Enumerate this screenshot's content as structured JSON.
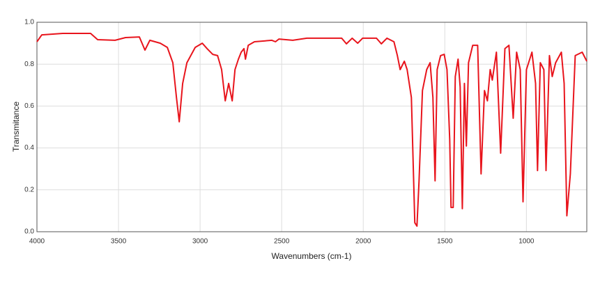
{
  "chart_data": {
    "type": "line",
    "xlabel": "Wavenumbers (cm-1)",
    "ylabel": "Transmitance",
    "xlim": [
      4000,
      630
    ],
    "ylim": [
      0,
      1
    ],
    "xticks": [
      4000,
      3500,
      3000,
      2500,
      2000,
      1500,
      1000
    ],
    "yticks": [
      {
        "value": 0,
        "label": "0.0"
      },
      0.2,
      0.4,
      0.6,
      0.8,
      {
        "value": 1,
        "label": "1.0"
      }
    ],
    "grid": true,
    "series": [
      {
        "color": "#e8141c",
        "x": [
          4000,
          3970,
          3842,
          3671,
          3628,
          3521,
          3457,
          3372,
          3338,
          3308,
          3244,
          3201,
          3167,
          3145,
          3128,
          3107,
          3081,
          3030,
          2987,
          2957,
          2923,
          2893,
          2868,
          2846,
          2825,
          2803,
          2786,
          2765,
          2748,
          2731,
          2722,
          2705,
          2667,
          2560,
          2538,
          2517,
          2432,
          2346,
          2132,
          2103,
          2068,
          2034,
          2004,
          1919,
          1889,
          1855,
          1812,
          1791,
          1774,
          1748,
          1731,
          1705,
          1684,
          1671,
          1658,
          1637,
          1611,
          1590,
          1573,
          1560,
          1547,
          1526,
          1504,
          1487,
          1470,
          1462,
          1449,
          1436,
          1419,
          1406,
          1393,
          1380,
          1368,
          1355,
          1329,
          1299,
          1278,
          1257,
          1239,
          1222,
          1209,
          1184,
          1158,
          1132,
          1107,
          1081,
          1060,
          1038,
          1021,
          1000,
          966,
          944,
          932,
          915,
          893,
          880,
          859,
          842,
          821,
          786,
          769,
          752,
          731,
          701,
          658,
          630
        ],
        "values": [
          0.907,
          0.94,
          0.947,
          0.947,
          0.917,
          0.914,
          0.927,
          0.93,
          0.867,
          0.914,
          0.9,
          0.88,
          0.807,
          0.641,
          0.525,
          0.708,
          0.807,
          0.88,
          0.9,
          0.874,
          0.847,
          0.841,
          0.774,
          0.625,
          0.708,
          0.625,
          0.774,
          0.824,
          0.857,
          0.874,
          0.824,
          0.89,
          0.907,
          0.914,
          0.907,
          0.92,
          0.914,
          0.924,
          0.924,
          0.897,
          0.924,
          0.9,
          0.924,
          0.924,
          0.897,
          0.924,
          0.907,
          0.841,
          0.774,
          0.814,
          0.774,
          0.641,
          0.043,
          0.027,
          0.243,
          0.674,
          0.774,
          0.807,
          0.641,
          0.243,
          0.774,
          0.841,
          0.847,
          0.774,
          0.442,
          0.116,
          0.116,
          0.741,
          0.824,
          0.691,
          0.11,
          0.708,
          0.409,
          0.807,
          0.89,
          0.89,
          0.276,
          0.674,
          0.625,
          0.774,
          0.724,
          0.857,
          0.375,
          0.874,
          0.89,
          0.542,
          0.857,
          0.774,
          0.143,
          0.774,
          0.857,
          0.708,
          0.292,
          0.807,
          0.774,
          0.292,
          0.841,
          0.741,
          0.807,
          0.857,
          0.708,
          0.076,
          0.276,
          0.841,
          0.857,
          0.814
        ]
      }
    ]
  }
}
